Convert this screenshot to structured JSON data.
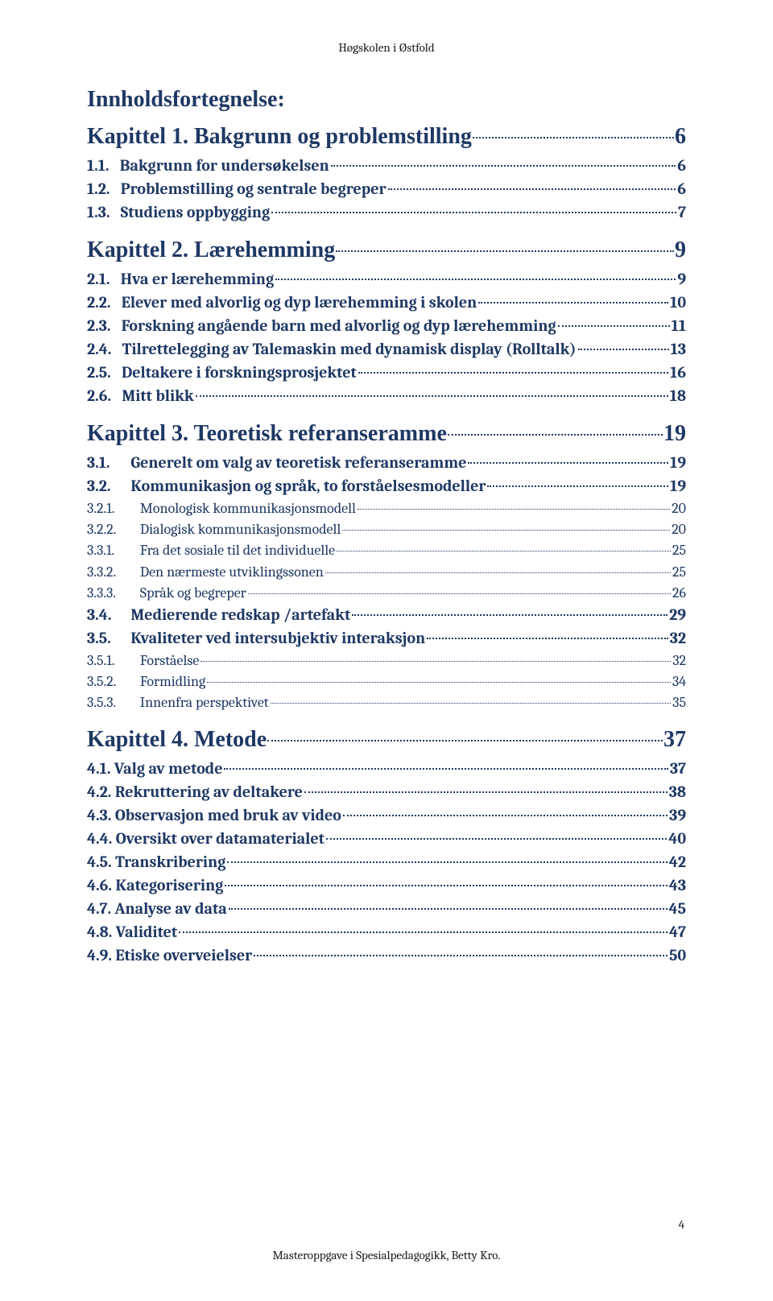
{
  "running_header": "Høgskolen i Østfold",
  "footer": "Masteroppgave i Spesialpedagogikk, Betty Kro.",
  "page_number": "4",
  "colors": {
    "heading": "#1f3864",
    "body_text": "#1a1a1a",
    "background": "#ffffff"
  },
  "typography": {
    "main_title_size": 28,
    "chapter_size": 28,
    "entry_bold_size": 20,
    "entry_normal_size": 18,
    "header_footer_size": 15,
    "heading_font": "Times New Roman",
    "body_font": "Cambria"
  },
  "toc": {
    "title": "Innholdsfortegnelse:",
    "chapters": [
      {
        "heading_text": "Kapittel 1. Bakgrunn og problemstilling",
        "heading_page": "6",
        "heading_has_dots": false,
        "entries": [
          {
            "level": 1,
            "num": "1.1.",
            "text": "Bakgrunn for undersøkelsen",
            "page": "6",
            "bold": true,
            "size": 20
          },
          {
            "level": 1,
            "num": "1.2.",
            "text": "Problemstilling og sentrale begreper",
            "page": "6",
            "bold": true,
            "size": 20
          },
          {
            "level": 1,
            "num": "1.3.",
            "text": "Studiens oppbygging",
            "page": "7",
            "bold": true,
            "size": 20
          }
        ]
      },
      {
        "heading_text": "Kapittel 2. Lærehemming",
        "heading_page": "9",
        "heading_has_dots": true,
        "entries": [
          {
            "level": 1,
            "num": "2.1.",
            "text": "Hva er lærehemming",
            "page": "9",
            "bold": true,
            "size": 20
          },
          {
            "level": 1,
            "num": "2.2.",
            "text": "Elever med alvorlig og dyp lærehemming i skolen",
            "page": "10",
            "bold": true,
            "size": 20
          },
          {
            "level": 1,
            "num": "2.3.",
            "text": "Forskning angående barn med alvorlig og dyp lærehemming",
            "page": "11",
            "bold": true,
            "size": 20
          },
          {
            "level": 1,
            "num": "2.4.",
            "text": "Tilrettelegging av Talemaskin med dynamisk display (Rolltalk)",
            "page": "13",
            "bold": true,
            "size": 20
          },
          {
            "level": 1,
            "num": "2.5.",
            "text": "Deltakere i forskningsprosjektet",
            "page": "16",
            "bold": true,
            "size": 20
          },
          {
            "level": 1,
            "num": "2.6.",
            "text": "Mitt blikk",
            "page": "18",
            "bold": true,
            "size": 20
          }
        ]
      },
      {
        "heading_text": "Kapittel 3. Teoretisk referanseramme",
        "heading_page": "19",
        "heading_has_dots": false,
        "heading_sep": ",,",
        "entries": [
          {
            "level": 1,
            "num": "3.1.",
            "text": "Generelt om valg av teoretisk referanseramme",
            "page": "19",
            "bold": true,
            "size": 20,
            "indented": true
          },
          {
            "level": 1,
            "num": "3.2.",
            "text": "Kommunikasjon og språk, to forståelsesmodeller",
            "page": "19",
            "bold": true,
            "size": 20,
            "indented": true
          },
          {
            "level": 2,
            "num": "3.2.1.",
            "text": "Monologisk kommunikasjonsmodell",
            "page": "20",
            "bold": false,
            "size": 18
          },
          {
            "level": 2,
            "num": "3.2.2.",
            "text": "Dialogisk kommunikasjonsmodell",
            "page": "20",
            "bold": false,
            "size": 18
          },
          {
            "level": 2,
            "num": "3.3.1.",
            "text": "Fra det sosiale til det individuelle",
            "page": "25",
            "bold": false,
            "size": 18
          },
          {
            "level": 2,
            "num": "3.3.2.",
            "text": "Den nærmeste utviklingssonen",
            "page": "25",
            "bold": false,
            "size": 18
          },
          {
            "level": 2,
            "num": "3.3.3.",
            "text": "Språk og begreper",
            "page": "26",
            "bold": false,
            "size": 18
          },
          {
            "level": 1,
            "num": "3.4.",
            "text": "Medierende redskap /artefakt",
            "page": "29",
            "bold": true,
            "size": 20,
            "indented": true
          },
          {
            "level": 1,
            "num": "3.5.",
            "text": "Kvaliteter ved intersubjektiv interaksjon",
            "page": "32",
            "bold": true,
            "size": 20,
            "indented": true
          },
          {
            "level": 2,
            "num": "3.5.1.",
            "text": "Forståelse",
            "page": "32",
            "bold": false,
            "size": 18
          },
          {
            "level": 2,
            "num": "3.5.2.",
            "text": "Formidling",
            "page": "34",
            "bold": false,
            "size": 18
          },
          {
            "level": 2,
            "num": "3.5.3.",
            "text": "Innenfra perspektivet",
            "page": "35",
            "bold": false,
            "size": 18
          }
        ]
      },
      {
        "heading_text": "Kapittel 4. Metode",
        "heading_page": "37",
        "heading_has_dots": true,
        "entries": [
          {
            "level": 1,
            "num": "4.1.",
            "text": "Valg av metode",
            "page": "37",
            "bold": true,
            "size": 20,
            "nospace": true
          },
          {
            "level": 1,
            "num": "4.2.",
            "text": "Rekruttering av deltakere",
            "page": "38",
            "bold": true,
            "size": 20,
            "nospace": true
          },
          {
            "level": 1,
            "num": "4.3.",
            "text": "Observasjon med bruk av video",
            "page": "39",
            "bold": true,
            "size": 20,
            "nospace": true
          },
          {
            "level": 1,
            "num": "4.4.",
            "text": "Oversikt over datamaterialet",
            "page": "40",
            "bold": true,
            "size": 20,
            "nospace": true
          },
          {
            "level": 1,
            "num": "4.5.",
            "text": "Transkribering",
            "page": "42",
            "bold": true,
            "size": 20,
            "nospace": true
          },
          {
            "level": 1,
            "num": "4.6.",
            "text": "Kategorisering",
            "page": "43",
            "bold": true,
            "size": 20,
            "nospace": true
          },
          {
            "level": 1,
            "num": "4.7.",
            "text": "Analyse av data",
            "page": "45",
            "bold": true,
            "size": 20,
            "nospace": true
          },
          {
            "level": 1,
            "num": "4.8.",
            "text": "Validitet",
            "page": "47",
            "bold": true,
            "size": 20,
            "nospace": true
          },
          {
            "level": 1,
            "num": "4.9.",
            "text": "Etiske overveielser",
            "page": "50",
            "bold": true,
            "size": 20,
            "nospace": true
          }
        ]
      }
    ]
  }
}
